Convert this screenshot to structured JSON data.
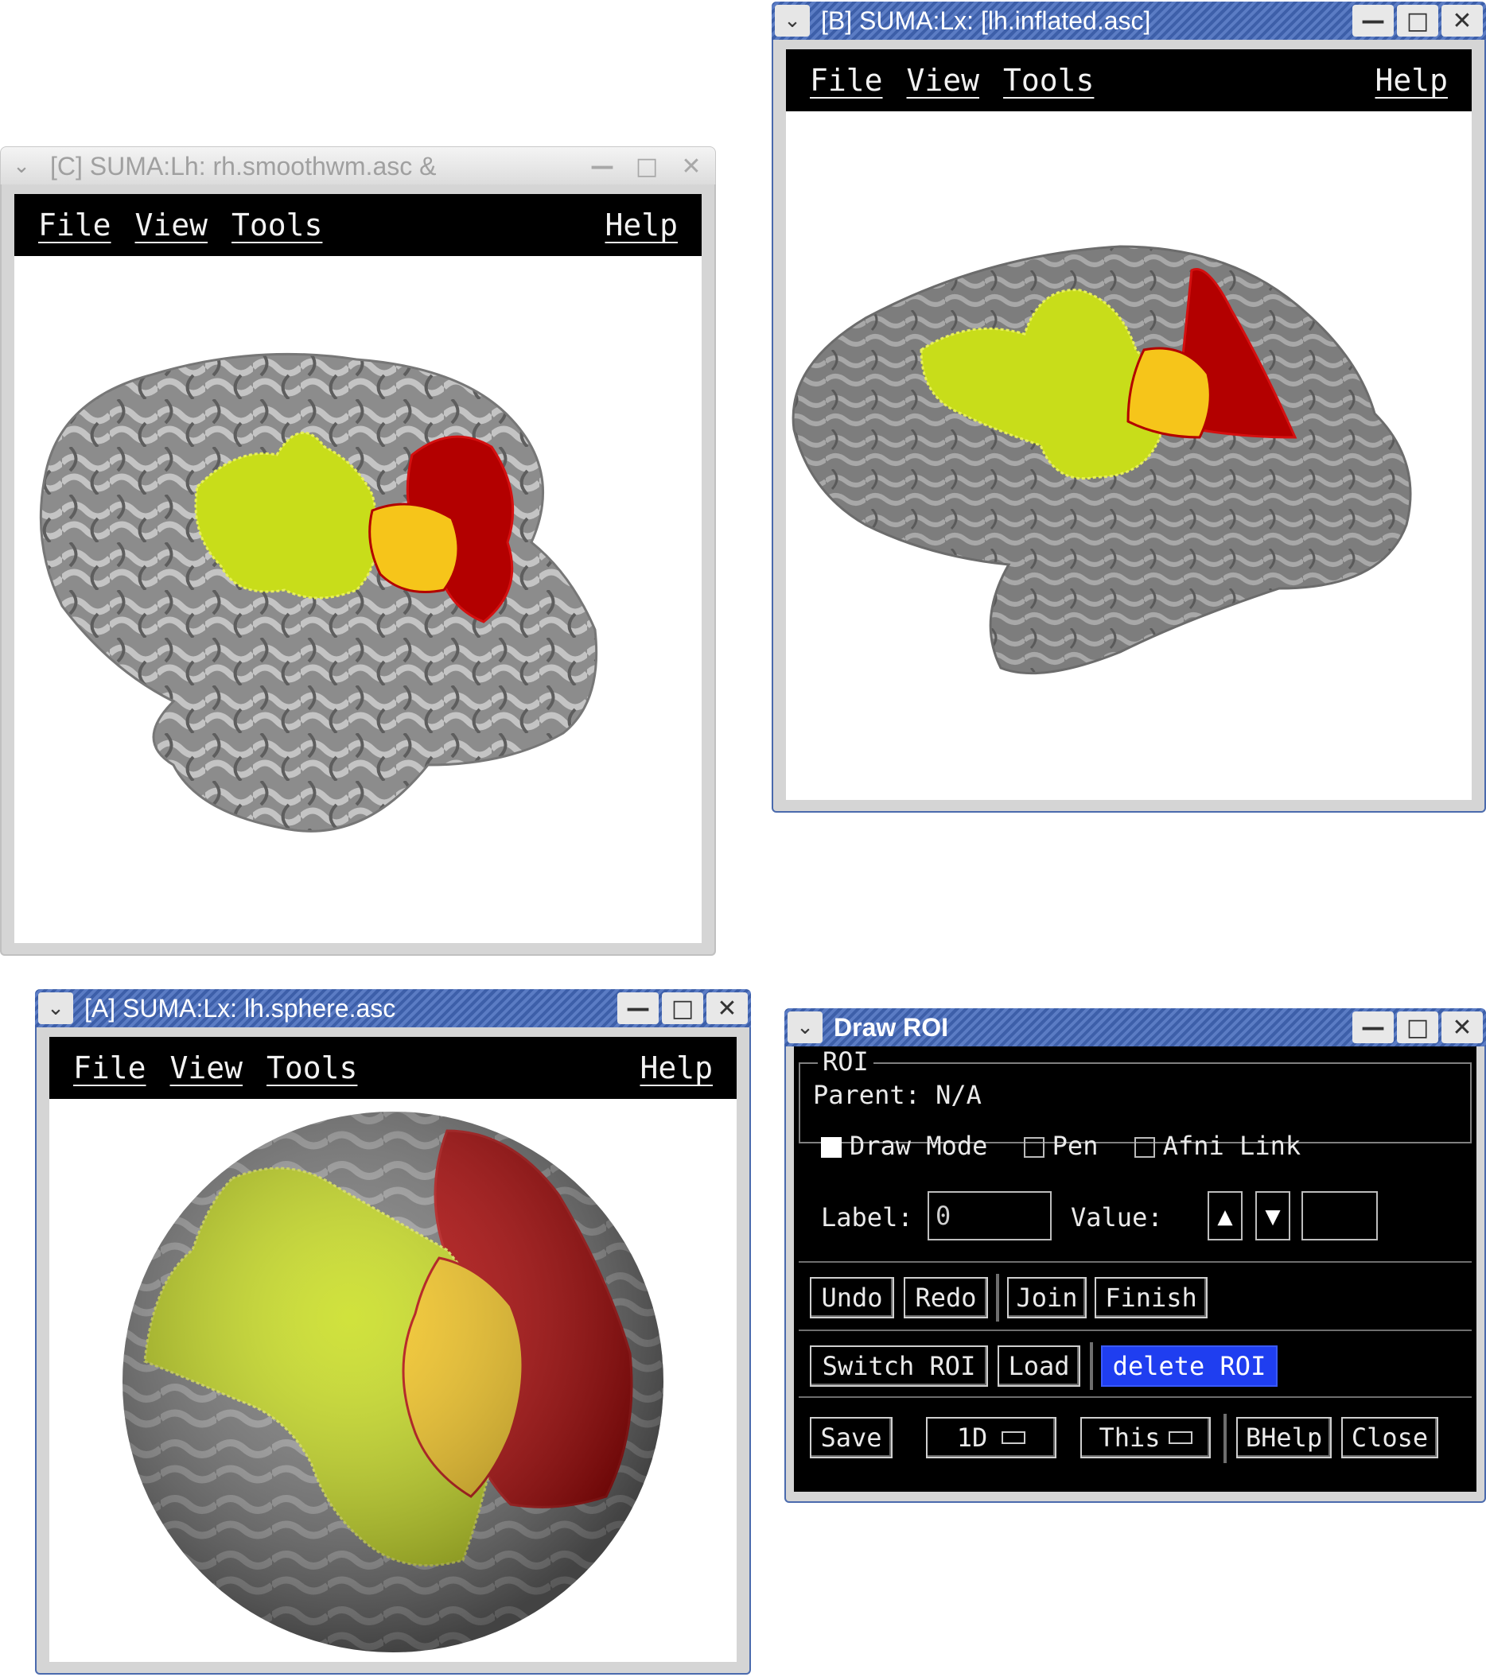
{
  "menu": {
    "file": "File",
    "view": "View",
    "tools": "Tools",
    "help": "Help"
  },
  "windows": {
    "c": {
      "title": "[C] SUMA:Lh: rh.smoothwm.asc &"
    },
    "b": {
      "title": "[B] SUMA:Lx: [lh.inflated.asc]"
    },
    "a": {
      "title": "[A] SUMA:Lx: lh.sphere.asc"
    }
  },
  "draw_roi": {
    "title": "Draw ROI",
    "group_label": "ROI",
    "parent": "Parent: N/A",
    "draw_mode": "Draw Mode",
    "pen": "Pen",
    "afni_link": "Afni Link",
    "label_caption": "Label:",
    "label_value": "0",
    "value_caption": "Value:",
    "value_field": "",
    "undo": "Undo",
    "redo": "Redo",
    "join": "Join",
    "finish": "Finish",
    "switch_roi": "Switch ROI",
    "load": "Load",
    "delete_roi": "delete ROI",
    "save": "Save",
    "format": "1D",
    "scope": "This",
    "bhelp": "BHelp",
    "close": "Close"
  },
  "icons": {
    "window_menu": "chevron-down-icon",
    "minimize": "minimize-icon",
    "maximize": "maximize-icon",
    "close": "close-icon",
    "arrow_up": "arrow-up-icon",
    "arrow_down": "arrow-down-icon"
  },
  "colors": {
    "active_titlebar": "#3d5fa9",
    "roi_yellow": "#cfe11a",
    "roi_orange": "#f3a21a",
    "roi_red": "#b30000",
    "cortex_gray": "#8a8a8a",
    "selected_button": "#1f3ef0"
  }
}
